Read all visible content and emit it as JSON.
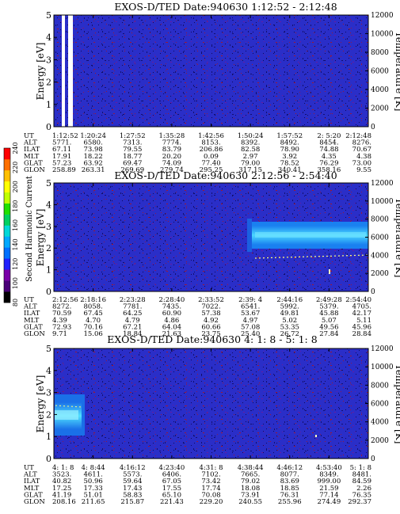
{
  "chart_data": [
    {
      "type": "heatmap",
      "title": "EXOS-D/TED   Date:940630  1:12:52 - 2:12:48",
      "ylabel_left": "Energy [eV]",
      "ylabel_right": "Temperature [K]",
      "ylim_left": [
        0,
        5
      ],
      "ylim_right": [
        0,
        12000
      ],
      "yticks_left": [
        "0",
        "1",
        "2",
        "3",
        "4",
        "5"
      ],
      "yticks_right": [
        "0",
        "2000",
        "4000",
        "6000",
        "8000",
        "10000",
        "12000"
      ],
      "time_ticks": [
        "1:12:52",
        "1:20:24",
        "1:27:52",
        "1:35:28",
        "1:42:56",
        "1:50:24",
        "1:57:52",
        "2: 5:20",
        "2:12:48"
      ],
      "ephemeris": [
        {
          "label": "UT",
          "values": [
            "1:12:52",
            "1:20:24",
            "1:27:52",
            "1:35:28",
            "1:42:56",
            "1:50:24",
            "1:57:52",
            "2: 5:20",
            "2:12:48"
          ]
        },
        {
          "label": "ALT",
          "values": [
            "5771.",
            "6580.",
            "7313.",
            "7774.",
            "8153.",
            "8392.",
            "8492.",
            "8454.",
            "8276."
          ]
        },
        {
          "label": "ILAT",
          "values": [
            "67.11",
            "73.98",
            "79.55",
            "83.79",
            "206.86",
            "82.58",
            "78.90",
            "74.88",
            "70.67"
          ]
        },
        {
          "label": "MLT",
          "values": [
            "17.91",
            "18.22",
            "18.77",
            "20.20",
            "0.09",
            "2.97",
            "3.92",
            "4.35",
            "4.38"
          ]
        },
        {
          "label": "GLAT",
          "values": [
            "57.23",
            "63.92",
            "69.47",
            "74.09",
            "77.40",
            "79.00",
            "78.52",
            "76.29",
            "73.00"
          ]
        },
        {
          "label": "GLON",
          "values": [
            "258.89",
            "263.31",
            "269.69",
            "279.74",
            "295.25",
            "317.15",
            "340.41",
            "358.16",
            "9.55"
          ]
        }
      ]
    },
    {
      "type": "heatmap",
      "title": "EXOS-D/TED   Date:940630  2:12:56 - 2:54:40",
      "ylabel_left": "Energy [eV]",
      "ylabel_right": "Temperature [K]",
      "ylim_left": [
        0,
        5
      ],
      "ylim_right": [
        0,
        12000
      ],
      "yticks_left": [
        "0",
        "1",
        "2",
        "3",
        "4",
        "5"
      ],
      "yticks_right": [
        "0",
        "2000",
        "4000",
        "6000",
        "8000",
        "10000",
        "12000"
      ],
      "time_ticks": [
        "2:12:56",
        "2:18:16",
        "2:23:28",
        "2:28:40",
        "2:33:52",
        "2:39: 4",
        "2:44:16",
        "2:49:28",
        "2:54:40"
      ],
      "ephemeris": [
        {
          "label": "UT",
          "values": [
            "2:12:56",
            "2:18:16",
            "2:23:28",
            "2:28:40",
            "2:33:52",
            "2:39: 4",
            "2:44:16",
            "2:49:28",
            "2:54:40"
          ]
        },
        {
          "label": "ALT",
          "values": [
            "8272.",
            "8058.",
            "7781.",
            "7435.",
            "7022.",
            "6541.",
            "5992.",
            "5379.",
            "4705."
          ]
        },
        {
          "label": "ILAT",
          "values": [
            "70.59",
            "67.45",
            "64.25",
            "60.90",
            "57.38",
            "53.67",
            "49.81",
            "45.88",
            "42.17"
          ]
        },
        {
          "label": "MLT",
          "values": [
            "4.39",
            "4.70",
            "4.79",
            "4.86",
            "4.92",
            "4.97",
            "5.02",
            "5.07",
            "5.11"
          ]
        },
        {
          "label": "GLAT",
          "values": [
            "72.93",
            "70.16",
            "67.21",
            "64.04",
            "60.66",
            "57.08",
            "53.35",
            "49.56",
            "45.96"
          ]
        },
        {
          "label": "GLON",
          "values": [
            "9.71",
            "15.06",
            "18.84",
            "21.63",
            "23.75",
            "25.40",
            "26.72",
            "27.84",
            "28.84"
          ]
        }
      ]
    },
    {
      "type": "heatmap",
      "title": "EXOS-D/TED   Date:940630  4: 1: 8 - 5: 1: 8",
      "ylabel_left": "Energy [eV]",
      "ylabel_right": "Temperature [K]",
      "ylim_left": [
        0,
        5
      ],
      "ylim_right": [
        0,
        12000
      ],
      "yticks_left": [
        "0",
        "1",
        "2",
        "3",
        "4",
        "5"
      ],
      "yticks_right": [
        "0",
        "2000",
        "4000",
        "6000",
        "8000",
        "10000",
        "12000"
      ],
      "time_ticks": [
        "4: 1: 8",
        "4: 8:44",
        "4:16:12",
        "4:23:40",
        "4:31: 8",
        "4:38:44",
        "4:46:12",
        "4:53:40",
        "5: 1: 8"
      ],
      "ephemeris": [
        {
          "label": "UT",
          "values": [
            "4: 1: 8",
            "4: 8:44",
            "4:16:12",
            "4:23:40",
            "4:31: 8",
            "4:38:44",
            "4:46:12",
            "4:53:40",
            "5: 1: 8"
          ]
        },
        {
          "label": "ALT",
          "values": [
            "3523.",
            "4611.",
            "5573.",
            "6406.",
            "7102.",
            "7665.",
            "8077.",
            "8349.",
            "8481."
          ]
        },
        {
          "label": "ILAT",
          "values": [
            "40.82",
            "50.96",
            "59.64",
            "67.05",
            "73.42",
            "79.02",
            "83.69",
            "999.00",
            "84.59"
          ]
        },
        {
          "label": "MLT",
          "values": [
            "17.25",
            "17.33",
            "17.43",
            "17.55",
            "17.74",
            "18.08",
            "18.85",
            "21.59",
            "2.26"
          ]
        },
        {
          "label": "GLAT",
          "values": [
            "41.19",
            "51.01",
            "58.83",
            "65.10",
            "70.08",
            "73.91",
            "76.31",
            "77.14",
            "76.35"
          ]
        },
        {
          "label": "GLON",
          "values": [
            "208.16",
            "211.65",
            "215.87",
            "221.43",
            "229.20",
            "240.55",
            "255.96",
            "274.49",
            "292.37"
          ]
        }
      ]
    }
  ],
  "colorbar": {
    "label": "Second Harmonic Current",
    "ticks": [
      "80",
      "100",
      "120",
      "140",
      "160",
      "180",
      "200",
      "220",
      "240"
    ],
    "colors": [
      "#000000",
      "#4a0078",
      "#7a00a8",
      "#2020ff",
      "#0070ff",
      "#00a8ff",
      "#00d8d8",
      "#00d060",
      "#20e000",
      "#c0ff00",
      "#ffff00",
      "#ffc000",
      "#ff7000",
      "#ff0000"
    ]
  },
  "colors": {
    "background_field": "#2a2ec8",
    "noise_dark": "#121070",
    "noise_red": "#a01830",
    "noise_purple": "#6a1aa0",
    "plasma_band": "#1aa0ff",
    "plasma_core": "#4ad8ff",
    "temperature_trace": "#ffff80"
  }
}
